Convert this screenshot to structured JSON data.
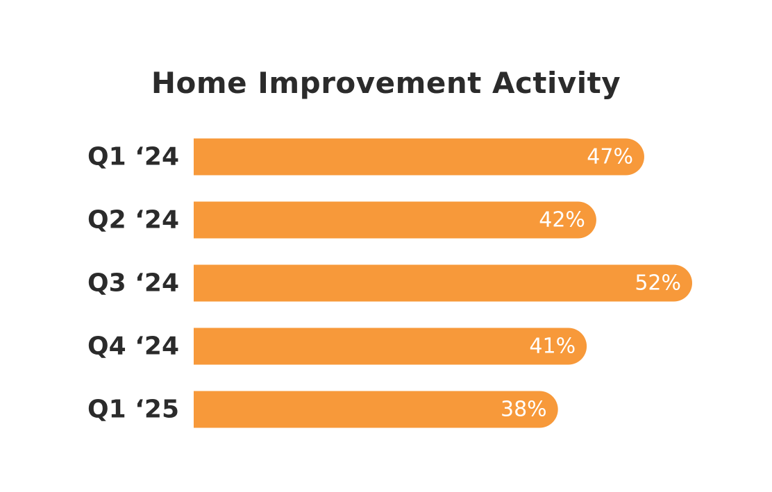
{
  "chart_data": {
    "type": "bar",
    "orientation": "horizontal",
    "title": "Home Improvement Activity",
    "categories": [
      "Q1 ‘24",
      "Q2 ‘24",
      "Q3 ‘24",
      "Q4 ‘24",
      "Q1 ‘25"
    ],
    "values": [
      47,
      42,
      52,
      41,
      38
    ],
    "value_labels": [
      "47%",
      "42%",
      "52%",
      "41%",
      "38%"
    ],
    "unit": "%",
    "xlim": [
      0,
      52
    ],
    "grid": false,
    "legend": "none",
    "colors": {
      "bar": "#F7993A",
      "category_text": "#2B2B2B",
      "value_text": "#FFFFFF",
      "background": "#FFFFFF"
    }
  }
}
